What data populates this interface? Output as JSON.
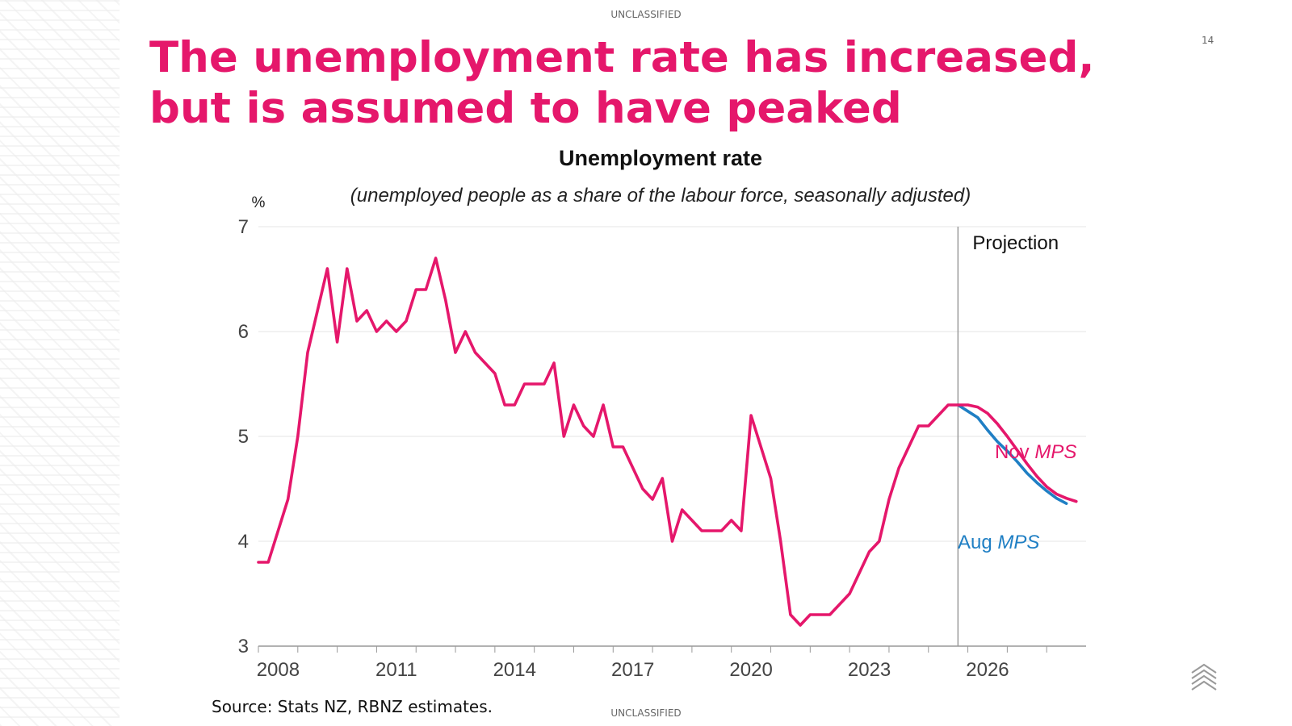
{
  "header": {
    "classification_top": "UNCLASSIFIED",
    "page_number": "14",
    "title": "The unemployment rate has increased, but is assumed to have peaked"
  },
  "footer": {
    "source": "Source: Stats NZ, RBNZ estimates.",
    "classification_bottom": "UNCLASSIFIED"
  },
  "logo": {
    "icon": "chevron-stack-icon"
  },
  "colors": {
    "accent": "#e5176b",
    "aug_series": "#1f7fc4",
    "grid": "#e6e6e6",
    "axis": "#999999"
  },
  "chart_data": {
    "type": "line",
    "title": "Unemployment rate",
    "subtitle": "(unemployed people as a share of the labour force, seasonally adjusted)",
    "ylabel": "%",
    "xlabel": "",
    "ylim": [
      3,
      7
    ],
    "yticks": [
      3,
      4,
      5,
      6,
      7
    ],
    "xlim": [
      2008,
      2029
    ],
    "xticks": [
      2008,
      2011,
      2014,
      2017,
      2020,
      2023,
      2026
    ],
    "grid": "horizontal",
    "projection_start": 2025.75,
    "projection_label": "Projection",
    "series": [
      {
        "name": "Nov MPS",
        "label_prefix": "Nov",
        "label_italic": "MPS",
        "color": "#e5176b",
        "x": [
          2008.0,
          2008.25,
          2008.5,
          2008.75,
          2009.0,
          2009.25,
          2009.5,
          2009.75,
          2010.0,
          2010.25,
          2010.5,
          2010.75,
          2011.0,
          2011.25,
          2011.5,
          2011.75,
          2012.0,
          2012.25,
          2012.5,
          2012.75,
          2013.0,
          2013.25,
          2013.5,
          2013.75,
          2014.0,
          2014.25,
          2014.5,
          2014.75,
          2015.0,
          2015.25,
          2015.5,
          2015.75,
          2016.0,
          2016.25,
          2016.5,
          2016.75,
          2017.0,
          2017.25,
          2017.5,
          2017.75,
          2018.0,
          2018.25,
          2018.5,
          2018.75,
          2019.0,
          2019.25,
          2019.5,
          2019.75,
          2020.0,
          2020.25,
          2020.5,
          2020.75,
          2021.0,
          2021.25,
          2021.5,
          2021.75,
          2022.0,
          2022.25,
          2022.5,
          2022.75,
          2023.0,
          2023.25,
          2023.5,
          2023.75,
          2024.0,
          2024.25,
          2024.5,
          2024.75,
          2025.0,
          2025.25,
          2025.5,
          2025.75,
          2026.0,
          2026.25,
          2026.5,
          2026.75,
          2027.0,
          2027.25,
          2027.5,
          2027.75,
          2028.0,
          2028.25,
          2028.5,
          2028.75
        ],
        "values": [
          3.8,
          3.8,
          4.1,
          4.4,
          5.0,
          5.8,
          6.2,
          6.6,
          5.9,
          6.6,
          6.1,
          6.2,
          6.0,
          6.1,
          6.0,
          6.1,
          6.4,
          6.4,
          6.7,
          6.3,
          5.8,
          6.0,
          5.8,
          5.7,
          5.6,
          5.3,
          5.3,
          5.5,
          5.5,
          5.5,
          5.7,
          5.0,
          5.3,
          5.1,
          5.0,
          5.3,
          4.9,
          4.9,
          4.7,
          4.5,
          4.4,
          4.6,
          4.0,
          4.3,
          4.2,
          4.1,
          4.1,
          4.1,
          4.2,
          4.1,
          5.2,
          4.9,
          4.6,
          4.0,
          3.3,
          3.2,
          3.3,
          3.3,
          3.3,
          3.4,
          3.5,
          3.7,
          3.9,
          4.0,
          4.4,
          4.7,
          4.9,
          5.1,
          5.1,
          5.2,
          5.3,
          5.3,
          5.3,
          5.28,
          5.22,
          5.12,
          5.0,
          4.87,
          4.74,
          4.62,
          4.52,
          4.45,
          4.41,
          4.38
        ]
      },
      {
        "name": "Aug MPS",
        "label_prefix": "Aug",
        "label_italic": "MPS",
        "color": "#1f7fc4",
        "x": [
          2025.75,
          2026.0,
          2026.25,
          2026.5,
          2026.75,
          2027.0,
          2027.25,
          2027.5,
          2027.75,
          2028.0,
          2028.25,
          2028.5
        ],
        "values": [
          5.3,
          5.24,
          5.18,
          5.06,
          4.95,
          4.86,
          4.76,
          4.65,
          4.56,
          4.48,
          4.41,
          4.36
        ]
      }
    ]
  }
}
